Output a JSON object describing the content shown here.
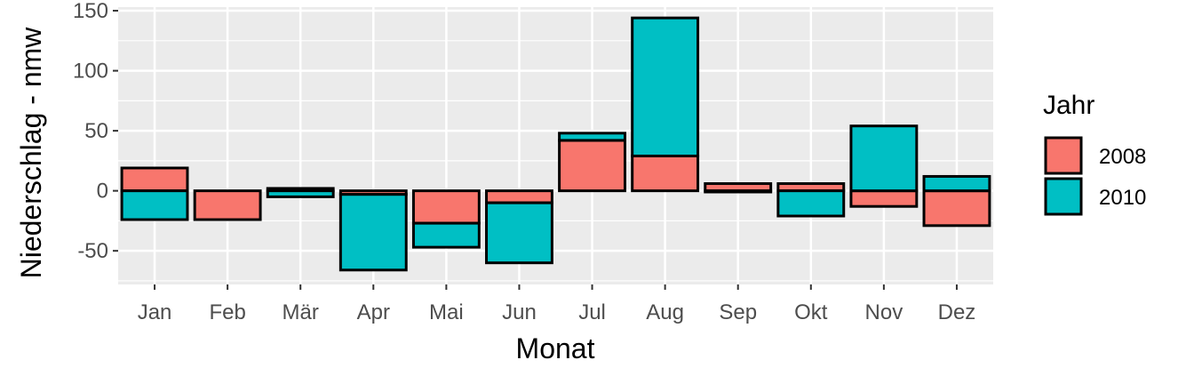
{
  "chart_data": {
    "type": "bar",
    "stacked": true,
    "xlabel": "Monat",
    "ylabel": "Niederschlag - nmw",
    "categories": [
      "Jan",
      "Feb",
      "Mär",
      "Apr",
      "Mai",
      "Jun",
      "Jul",
      "Aug",
      "Sep",
      "Okt",
      "Nov",
      "Dez"
    ],
    "ylim": [
      -78,
      153
    ],
    "yticks": [
      -50,
      0,
      50,
      100,
      150
    ],
    "legend": {
      "title": "Jahr",
      "position": "right"
    },
    "grid": true,
    "series": [
      {
        "name": "2008",
        "color": "#F8766D",
        "values": [
          19,
          -24,
          2,
          -3,
          -27,
          -10,
          42,
          29,
          6,
          6,
          -13,
          -29
        ]
      },
      {
        "name": "2010",
        "color": "#00BFC4",
        "values": [
          -24,
          0,
          -5,
          -63,
          -20,
          -50,
          6,
          115,
          -1,
          -21,
          54,
          12
        ]
      }
    ]
  }
}
